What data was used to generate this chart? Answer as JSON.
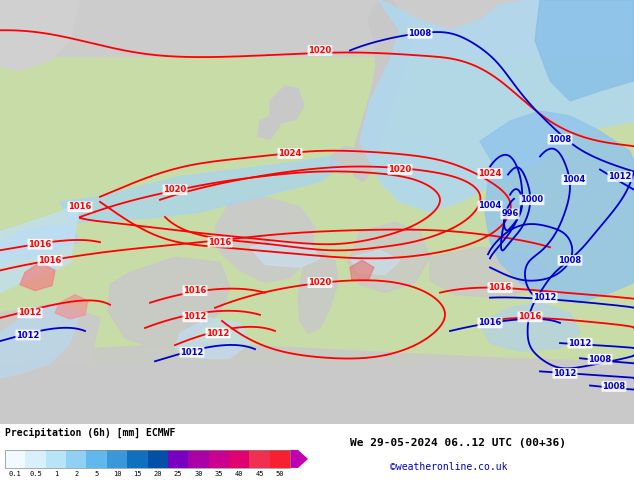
{
  "title_left": "Precipitation (6h) [mm] ECMWF",
  "title_right": "We 29-05-2024 06..12 UTC (00+36)",
  "credit": "©weatheronline.co.uk",
  "colorbar_values": [
    "0.1",
    "0.5",
    "1",
    "2",
    "5",
    "10",
    "15",
    "20",
    "25",
    "30",
    "35",
    "40",
    "45",
    "50"
  ],
  "colorbar_colors": [
    "#e8f8fe",
    "#c0eaf8",
    "#98d8f4",
    "#70c4f0",
    "#48a8e0",
    "#2878c8",
    "#0858b0",
    "#0040a0",
    "#8800c0",
    "#b800a0",
    "#d80080",
    "#e80060",
    "#f03040",
    "#f82020"
  ],
  "map_bg_gray": "#d8d8d8",
  "map_bg_green": "#c0dca0",
  "map_bg_lightgreen": "#d8ecc0",
  "precip_light_blue": "#c8e8f8",
  "precip_med_blue": "#90c8f0",
  "precip_dark_blue": "#5090d8",
  "fig_bg": "#ffffff",
  "figsize": [
    6.34,
    4.9
  ],
  "dpi": 100
}
